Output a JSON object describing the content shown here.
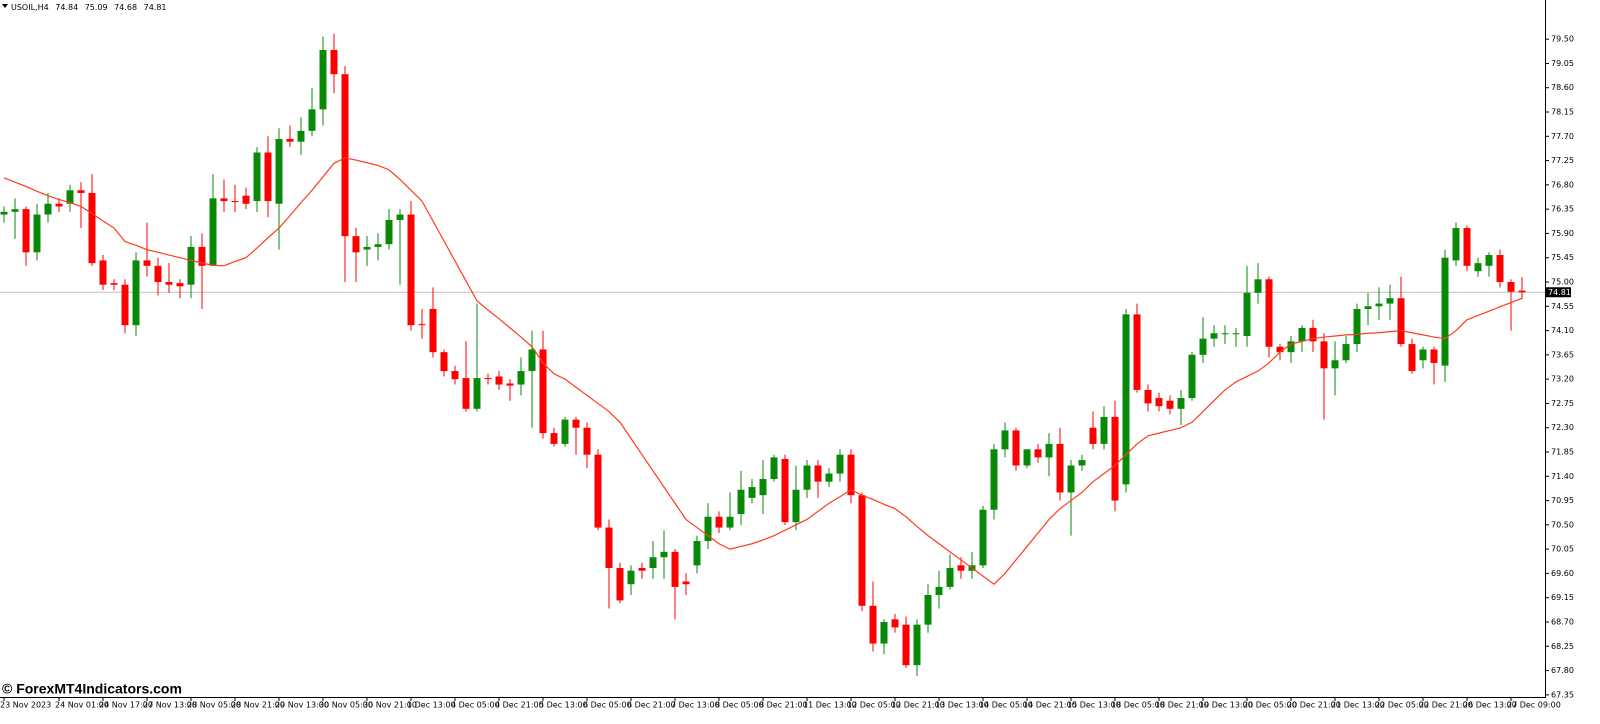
{
  "chart_data": {
    "type": "candlestick",
    "symbol": "USOIL,H4",
    "watermark": "© ForexMT4Indicators.com",
    "up_color": "#088a08",
    "down_color": "#ff0000",
    "ylim": [
      67.31,
      80.17
    ],
    "yticks": [
      {
        "value": 79.5,
        "label": "79.50"
      },
      79.05,
      {
        "value": 78.6,
        "label": "78.60"
      },
      78.15,
      {
        "value": 77.7,
        "label": "77.70"
      },
      77.25,
      {
        "value": 76.8,
        "label": "76.80"
      },
      76.35,
      {
        "value": 75.9,
        "label": "75.90"
      },
      75.45,
      {
        "value": 75,
        "label": "75.00"
      },
      74.55,
      {
        "value": 74.1,
        "label": "74.10"
      },
      73.65,
      {
        "value": 73.2,
        "label": "73.20"
      },
      72.75,
      {
        "value": 72.3,
        "label": "72.30"
      },
      71.85,
      {
        "value": 71.4,
        "label": "71.40"
      },
      70.95,
      {
        "value": 70.5,
        "label": "70.50"
      },
      70.05,
      {
        "value": 69.6,
        "label": "69.60"
      },
      69.15,
      {
        "value": 68.7,
        "label": "68.70"
      },
      68.25,
      {
        "value": 67.8,
        "label": "67.80"
      },
      67.35
    ],
    "categories": [
      "23 Nov 2023",
      null,
      null,
      null,
      null,
      "24 Nov 01:00",
      null,
      null,
      null,
      "24 Nov 17:00",
      null,
      null,
      null,
      "27 Nov 13:00",
      null,
      null,
      null,
      "28 Nov 05:00",
      null,
      null,
      null,
      "28 Nov 21:00",
      null,
      null,
      null,
      "29 Nov 13:00",
      null,
      null,
      null,
      "30 Nov 05:00",
      null,
      null,
      null,
      "30 Nov 21:00",
      null,
      null,
      null,
      "1 Dec 13:00",
      null,
      null,
      null,
      "4 Dec 05:00",
      null,
      null,
      null,
      "4 Dec 21:00",
      null,
      null,
      null,
      "5 Dec 13:00",
      null,
      null,
      null,
      "6 Dec 05:00",
      null,
      null,
      null,
      "6 Dec 21:00",
      null,
      null,
      null,
      "7 Dec 13:00",
      null,
      null,
      null,
      "8 Dec 05:00",
      null,
      null,
      null,
      "8 Dec 21:00",
      null,
      null,
      null,
      "11 Dec 13:00",
      null,
      null,
      null,
      "12 Dec 05:00",
      null,
      null,
      null,
      "12 Dec 21:00",
      null,
      null,
      null,
      "13 Dec 13:00",
      null,
      null,
      null,
      "14 Dec 05:00",
      null,
      null,
      null,
      "14 Dec 21:00",
      null,
      null,
      null,
      "15 Dec 13:00",
      null,
      null,
      null,
      "18 Dec 05:00",
      null,
      null,
      null,
      "18 Dec 21:00",
      null,
      null,
      null,
      "19 Dec 13:00",
      null,
      null,
      null,
      "20 Dec 05:00",
      null,
      null,
      null,
      "20 Dec 21:00",
      null,
      null,
      null,
      "21 Dec 13:00",
      null,
      null,
      null,
      "22 Dec 05:00",
      null,
      null,
      null,
      "22 Dec 21:00",
      null,
      null,
      null,
      "26 Dec 13:00",
      null,
      null,
      null,
      "27 Dec 09:00",
      null
    ],
    "open": [
      76.25,
      76.3,
      76.35,
      75.55,
      76.25,
      76.45,
      76.45,
      76.7,
      76.65,
      75.4,
      74.98,
      74.95,
      74.2,
      75.4,
      75.3,
      75.0,
      74.98,
      74.95,
      75.65,
      75.3,
      76.55,
      76.5,
      76.6,
      76.5,
      77.4,
      76.45,
      77.65,
      77.6,
      77.8,
      78.2,
      79.3,
      78.85,
      75.85,
      75.6,
      75.65,
      75.7,
      76.15,
      76.25,
      74.22,
      74.5,
      73.7,
      73.35,
      73.22,
      72.65,
      73.22,
      73.25,
      73.12,
      73.1,
      73.35,
      73.75,
      72.2,
      72.0,
      72.45,
      72.3,
      71.8,
      70.45,
      69.7,
      69.4,
      69.7,
      69.7,
      69.9,
      70.0,
      69.45,
      69.75,
      70.2,
      70.65,
      70.45,
      70.7,
      71.0,
      71.05,
      71.35,
      71.72,
      70.55,
      71.15,
      71.6,
      71.3,
      71.45,
      71.8,
      71.05,
      69.0,
      68.3,
      68.75,
      68.65,
      67.9,
      68.65,
      69.2,
      69.35,
      69.75,
      69.65,
      69.75,
      70.78,
      71.9,
      72.25,
      71.6,
      71.9,
      71.75,
      72.0,
      71.1,
      71.6,
      72.3,
      72.0,
      72.5,
      71.25,
      74.4,
      73.0,
      72.85,
      72.8,
      72.65,
      72.85,
      73.65,
      73.95,
      74.05,
      74.05,
      74.0,
      74.8,
      75.05,
      73.8,
      73.7,
      73.9,
      74.15,
      73.9,
      73.4,
      73.55,
      73.85,
      74.5,
      74.55,
      74.6,
      74.7,
      73.85,
      73.55,
      73.75,
      73.45,
      75.4,
      76.0,
      75.2,
      75.3,
      75.5,
      75.0,
      74.84
    ],
    "high": [
      76.4,
      76.55,
      76.4,
      76.45,
      76.65,
      76.55,
      76.8,
      76.85,
      77.0,
      75.5,
      75.05,
      75.05,
      75.55,
      76.1,
      75.45,
      75.35,
      75.05,
      75.85,
      75.9,
      77.0,
      76.9,
      76.8,
      76.75,
      77.5,
      77.7,
      77.85,
      77.9,
      78.05,
      78.6,
      79.55,
      79.6,
      79.0,
      76.0,
      75.85,
      75.9,
      76.35,
      76.35,
      76.5,
      74.5,
      74.9,
      73.75,
      73.45,
      73.9,
      74.6,
      73.3,
      73.35,
      73.2,
      73.6,
      74.1,
      74.1,
      72.3,
      72.5,
      72.5,
      72.4,
      71.9,
      70.6,
      69.8,
      69.75,
      69.8,
      70.2,
      70.4,
      70.05,
      69.6,
      70.3,
      70.9,
      70.75,
      71.1,
      71.5,
      71.35,
      71.7,
      71.8,
      71.8,
      71.6,
      71.7,
      71.7,
      71.55,
      71.9,
      71.9,
      71.1,
      69.45,
      68.75,
      68.85,
      68.8,
      68.75,
      69.4,
      69.65,
      69.95,
      69.9,
      70.0,
      70.85,
      72.0,
      72.4,
      72.3,
      71.9,
      72.0,
      72.2,
      72.3,
      71.7,
      71.8,
      72.6,
      72.7,
      72.8,
      74.5,
      74.6,
      73.1,
      72.95,
      72.9,
      73.0,
      73.7,
      74.35,
      74.2,
      74.2,
      74.15,
      75.3,
      75.35,
      75.1,
      73.85,
      74.0,
      74.2,
      74.3,
      74.05,
      73.9,
      74.0,
      74.6,
      74.8,
      74.9,
      74.95,
      75.1,
      73.95,
      73.8,
      73.8,
      75.6,
      76.1,
      76.05,
      75.45,
      75.55,
      75.6,
      75.05,
      75.09
    ],
    "low": [
      76.1,
      75.8,
      75.3,
      75.4,
      76.1,
      76.3,
      76.3,
      76.0,
      75.3,
      74.85,
      74.85,
      74.05,
      74.0,
      75.1,
      74.75,
      74.8,
      74.7,
      74.7,
      74.5,
      75.3,
      76.3,
      76.3,
      76.35,
      76.3,
      76.2,
      75.6,
      77.5,
      77.35,
      77.7,
      77.9,
      78.5,
      75.0,
      75.0,
      75.3,
      75.4,
      75.6,
      74.95,
      74.1,
      73.95,
      73.6,
      73.25,
      73.1,
      72.6,
      72.6,
      73.1,
      73.0,
      72.8,
      72.9,
      72.3,
      72.1,
      71.95,
      71.95,
      71.8,
      71.55,
      70.4,
      68.95,
      69.05,
      69.2,
      69.5,
      69.5,
      69.5,
      68.75,
      69.2,
      69.6,
      70.05,
      70.35,
      70.4,
      70.5,
      70.9,
      70.7,
      71.3,
      70.5,
      70.4,
      71.0,
      71.0,
      71.2,
      71.3,
      70.9,
      68.9,
      68.15,
      68.1,
      68.5,
      67.85,
      67.7,
      68.5,
      68.95,
      69.3,
      69.5,
      69.5,
      69.7,
      70.6,
      71.75,
      71.5,
      71.55,
      71.65,
      71.4,
      70.95,
      70.3,
      71.5,
      71.9,
      71.9,
      70.75,
      71.1,
      72.95,
      72.6,
      72.6,
      72.55,
      72.35,
      72.8,
      73.5,
      73.8,
      73.85,
      73.8,
      73.8,
      74.6,
      73.6,
      73.55,
      73.5,
      73.7,
      73.7,
      72.45,
      72.9,
      73.5,
      73.7,
      74.2,
      74.3,
      74.3,
      73.8,
      73.3,
      73.4,
      73.1,
      73.15,
      75.3,
      75.2,
      75.1,
      75.1,
      74.9,
      74.1,
      74.68
    ],
    "close": [
      76.3,
      76.35,
      75.55,
      76.25,
      76.45,
      76.4,
      76.7,
      76.65,
      75.35,
      74.95,
      74.95,
      74.2,
      75.4,
      75.3,
      75.0,
      74.95,
      74.92,
      75.65,
      75.3,
      76.55,
      76.5,
      76.48,
      76.45,
      77.4,
      76.5,
      77.65,
      77.6,
      77.8,
      78.2,
      79.3,
      78.85,
      75.85,
      75.55,
      75.65,
      75.7,
      76.15,
      76.25,
      74.2,
      74.2,
      73.7,
      73.35,
      73.2,
      72.65,
      73.22,
      73.2,
      73.1,
      73.08,
      73.35,
      73.75,
      72.2,
      72.0,
      72.45,
      72.3,
      71.8,
      70.45,
      69.7,
      69.1,
      69.65,
      69.65,
      69.9,
      70.0,
      69.35,
      69.4,
      70.2,
      70.65,
      70.45,
      70.65,
      71.15,
      71.2,
      71.35,
      71.75,
      70.55,
      71.15,
      71.6,
      71.3,
      71.45,
      71.8,
      71.05,
      69.0,
      68.3,
      68.7,
      68.6,
      67.9,
      68.65,
      69.2,
      69.35,
      69.7,
      69.65,
      69.75,
      70.78,
      71.9,
      72.25,
      71.6,
      71.9,
      71.75,
      72.0,
      71.1,
      71.6,
      71.7,
      72.0,
      72.5,
      70.95,
      74.4,
      73.0,
      72.75,
      72.7,
      72.65,
      72.85,
      73.65,
      73.95,
      74.05,
      74.05,
      74.05,
      74.8,
      75.05,
      73.8,
      73.7,
      73.9,
      74.15,
      73.9,
      73.4,
      73.55,
      73.85,
      74.5,
      74.55,
      74.6,
      74.7,
      73.85,
      73.35,
      73.75,
      73.5,
      75.45,
      76.0,
      75.3,
      75.35,
      75.5,
      75.0,
      74.82,
      74.81
    ],
    "ma": {
      "color": "#ff3b1f",
      "values": [
        76.93,
        76.85,
        76.77,
        76.68,
        76.6,
        76.53,
        76.47,
        76.4,
        76.27,
        76.13,
        76.0,
        75.75,
        75.68,
        75.6,
        75.55,
        75.5,
        75.45,
        75.4,
        75.35,
        75.31,
        75.3,
        75.38,
        75.45,
        75.63,
        75.82,
        76.0,
        76.23,
        76.47,
        76.7,
        76.95,
        77.2,
        77.3,
        77.26,
        77.21,
        77.16,
        77.08,
        76.9,
        76.7,
        76.5,
        76.13,
        75.76,
        75.39,
        75.02,
        74.65,
        74.48,
        74.32,
        74.15,
        73.98,
        73.8,
        73.5,
        73.3,
        73.2,
        73.05,
        72.9,
        72.75,
        72.6,
        72.4,
        72.1,
        71.8,
        71.5,
        71.2,
        70.9,
        70.6,
        70.45,
        70.3,
        70.15,
        70.05,
        70.1,
        70.15,
        70.22,
        70.3,
        70.4,
        70.5,
        70.6,
        70.75,
        70.9,
        71.02,
        71.15,
        71.05,
        70.97,
        70.88,
        70.8,
        70.65,
        70.47,
        70.3,
        70.15,
        70.0,
        69.85,
        69.7,
        69.55,
        69.4,
        69.6,
        69.85,
        70.1,
        70.35,
        70.6,
        70.8,
        70.95,
        71.1,
        71.3,
        71.45,
        71.6,
        71.8,
        72.0,
        72.15,
        72.2,
        72.25,
        72.3,
        72.4,
        72.6,
        72.8,
        73.0,
        73.15,
        73.25,
        73.35,
        73.5,
        73.7,
        73.85,
        73.9,
        73.95,
        73.98,
        74.0,
        74.02,
        74.03,
        74.05,
        74.06,
        74.08,
        74.1,
        74.06,
        74.02,
        73.98,
        73.95,
        74.1,
        74.3,
        74.38,
        74.46,
        74.54,
        74.62,
        74.7
      ]
    }
  }
}
